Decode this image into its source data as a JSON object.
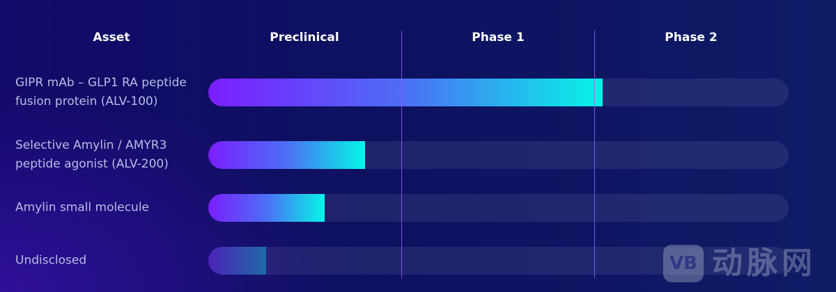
{
  "headers": {
    "asset": "Asset",
    "preclinical": "Preclinical",
    "phase1": "Phase 1",
    "phase2": "Phase 2"
  },
  "assets": [
    {
      "label": "GIPR mAb – GLP1 RA peptide fusion protein (ALV-100)",
      "progress": 0.68
    },
    {
      "label": "Selective Amylin / AMYR3 peptide agonist (ALV-200)",
      "progress": 0.27
    },
    {
      "label": "Amylin small molecule",
      "progress": 0.2
    },
    {
      "label": "Undisclosed",
      "progress": 0.1
    }
  ],
  "colors": {
    "fill_start": "#7b1eff",
    "fill_mid": "#4c6ff5",
    "fill_end": "#06f5e6",
    "track": "rgba(255,255,255,0.08)",
    "divider": "#965aff"
  },
  "watermark": {
    "badge": "VB",
    "text": "动脉网"
  }
}
